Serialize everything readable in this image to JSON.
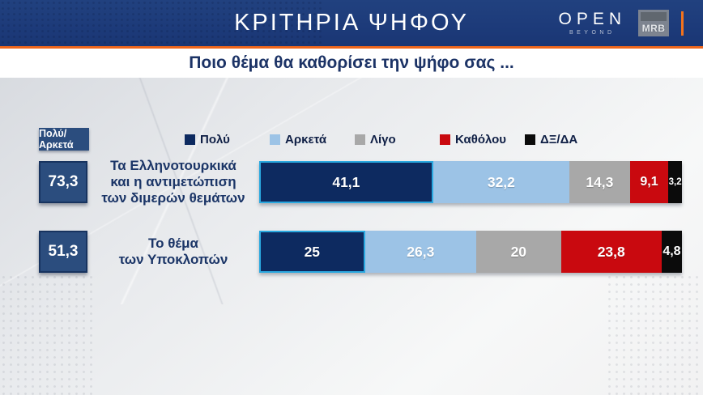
{
  "header": {
    "title": "ΚΡΙΤΗΡΙΑ ΨΗΦΟΥ",
    "open_logo": {
      "name": "OPEN",
      "sub": "BEYOND"
    },
    "mrb_logo": "MRB"
  },
  "subtitle": "Ποιο θέμα θα καθορίσει την ψήφο σας ...",
  "summary_header": "Πολύ/Αρκετά",
  "colors": {
    "banner_blue": "#1d3b7a",
    "accent_orange": "#f0671c",
    "summary_box_blue": "#2b4d7e",
    "first_segment_outline": "#2aa9e0",
    "poly_navy": "#0d2a60",
    "arketa_lightblue": "#9cc3e6",
    "ligo_gray": "#a8a8a8",
    "katholoy_red": "#c9090f",
    "dxda_black": "#0b0b0b"
  },
  "chart_data": {
    "type": "bar",
    "stacked": true,
    "orientation": "horizontal",
    "unit": "%",
    "xlim": [
      0,
      100
    ],
    "title": "ΚΡΙΤΗΡΙΑ ΨΗΦΟΥ",
    "subtitle": "Ποιο θέμα θα καθορίσει την ψήφο σας ...",
    "legend_position": "top",
    "legend": [
      {
        "label": "Πολύ",
        "color": "#0d2a60"
      },
      {
        "label": "Αρκετά",
        "color": "#9cc3e6"
      },
      {
        "label": "Λίγο",
        "color": "#a8a8a8"
      },
      {
        "label": "Καθόλου",
        "color": "#c9090f"
      },
      {
        "label": "ΔΞ/ΔΑ",
        "color": "#0b0b0b"
      }
    ],
    "rows": [
      {
        "summary": "73,3",
        "label": "Τα Ελληνοτουρκικά\nκαι η αντιμετώπιση\nτων διμερών θεμάτων",
        "segments": [
          {
            "name": "Πολύ",
            "value": 41.1,
            "display": "41,1"
          },
          {
            "name": "Αρκετά",
            "value": 32.2,
            "display": "32,2"
          },
          {
            "name": "Λίγο",
            "value": 14.3,
            "display": "14,3"
          },
          {
            "name": "Καθόλου",
            "value": 9.1,
            "display": "9,1"
          },
          {
            "name": "ΔΞ/ΔΑ",
            "value": 3.2,
            "display": "3,2"
          }
        ]
      },
      {
        "summary": "51,3",
        "label": "Το θέμα\nτων Υποκλοπών",
        "segments": [
          {
            "name": "Πολύ",
            "value": 25,
            "display": "25"
          },
          {
            "name": "Αρκετά",
            "value": 26.3,
            "display": "26,3"
          },
          {
            "name": "Λίγο",
            "value": 20,
            "display": "20"
          },
          {
            "name": "Καθόλου",
            "value": 23.8,
            "display": "23,8"
          },
          {
            "name": "ΔΞ/ΔΑ",
            "value": 4.8,
            "display": "4,8"
          }
        ]
      }
    ]
  }
}
